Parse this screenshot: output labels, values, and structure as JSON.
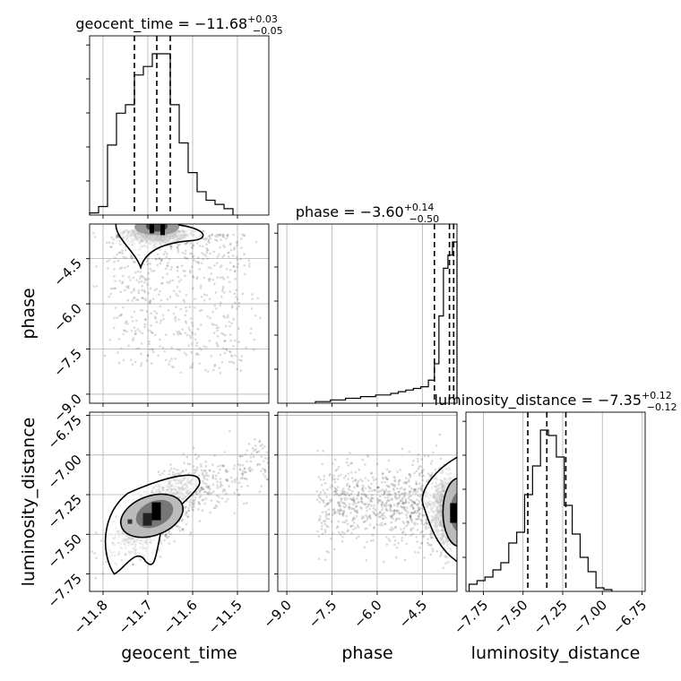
{
  "chart_data": {
    "type": "corner",
    "parameters": [
      "geocent_time",
      "phase",
      "luminosity_distance"
    ],
    "ranges": {
      "geocent_time": [
        -11.83,
        -11.43
      ],
      "phase": [
        -9.3,
        -3.35
      ],
      "luminosity_distance": [
        -7.86,
        -6.73
      ]
    },
    "ticks": {
      "geocent_time": [
        -11.8,
        -11.7,
        -11.6,
        -11.5
      ],
      "phase": [
        -9.0,
        -7.5,
        -6.0,
        -4.5
      ],
      "luminosity_distance": [
        -7.75,
        -7.5,
        -7.25,
        -7.0,
        -6.75
      ]
    },
    "tick_labels": {
      "geocent_time": [
        "−11.8",
        "−11.7",
        "−11.6",
        "−11.5"
      ],
      "phase": [
        "−9.0",
        "−7.5",
        "−6.0",
        "−4.5"
      ],
      "luminosity_distance": [
        "−7.75",
        "−7.50",
        "−7.25",
        "−7.00",
        "−6.75"
      ]
    },
    "titles": {
      "geocent_time": {
        "prefix": "geocent_time = −11.68",
        "plus": "+0.03",
        "minus": "−0.05"
      },
      "phase": {
        "prefix": "phase = −3.60",
        "plus": "+0.14",
        "minus": "−0.50"
      },
      "luminosity_distance": {
        "prefix": "luminosity_distance = −7.35",
        "plus": "+0.12",
        "minus": "−0.12"
      }
    },
    "quantiles": {
      "geocent_time": [
        -11.73,
        -11.68,
        -11.65
      ],
      "phase": [
        -4.1,
        -3.6,
        -3.46
      ],
      "luminosity_distance": [
        -7.47,
        -7.35,
        -7.23
      ]
    },
    "histograms": {
      "geocent_time": {
        "edges": [
          -11.83,
          -11.81,
          -11.79,
          -11.77,
          -11.75,
          -11.73,
          -11.71,
          -11.69,
          -11.67,
          -11.65,
          -11.63,
          -11.61,
          -11.59,
          -11.57,
          -11.55,
          -11.53,
          -11.51
        ],
        "counts": [
          1,
          4,
          33,
          48,
          52,
          66,
          70,
          76,
          76,
          52,
          34,
          20,
          11,
          7,
          5,
          3
        ]
      },
      "phase": {
        "edges": [
          -8.05,
          -7.8,
          -7.55,
          -7.3,
          -7.05,
          -6.8,
          -6.55,
          -6.3,
          -6.05,
          -5.8,
          -5.55,
          -5.3,
          -5.05,
          -4.8,
          -4.55,
          -4.3,
          -4.1,
          -3.95,
          -3.8,
          -3.65,
          -3.5,
          -3.35
        ],
        "counts": [
          1,
          1,
          2,
          2,
          3,
          3,
          4,
          4,
          5,
          5,
          6,
          7,
          8,
          9,
          10,
          14,
          24,
          53,
          82,
          90,
          98
        ]
      },
      "luminosity_distance": {
        "edges": [
          -7.84,
          -7.79,
          -7.74,
          -7.69,
          -7.64,
          -7.59,
          -7.54,
          -7.49,
          -7.44,
          -7.39,
          -7.34,
          -7.29,
          -7.24,
          -7.19,
          -7.14,
          -7.09,
          -7.04,
          -6.99,
          -6.94
        ],
        "counts": [
          4,
          6,
          8,
          12,
          16,
          27,
          33,
          54,
          70,
          90,
          87,
          75,
          48,
          32,
          19,
          11,
          2,
          1
        ]
      }
    },
    "grid": true
  }
}
